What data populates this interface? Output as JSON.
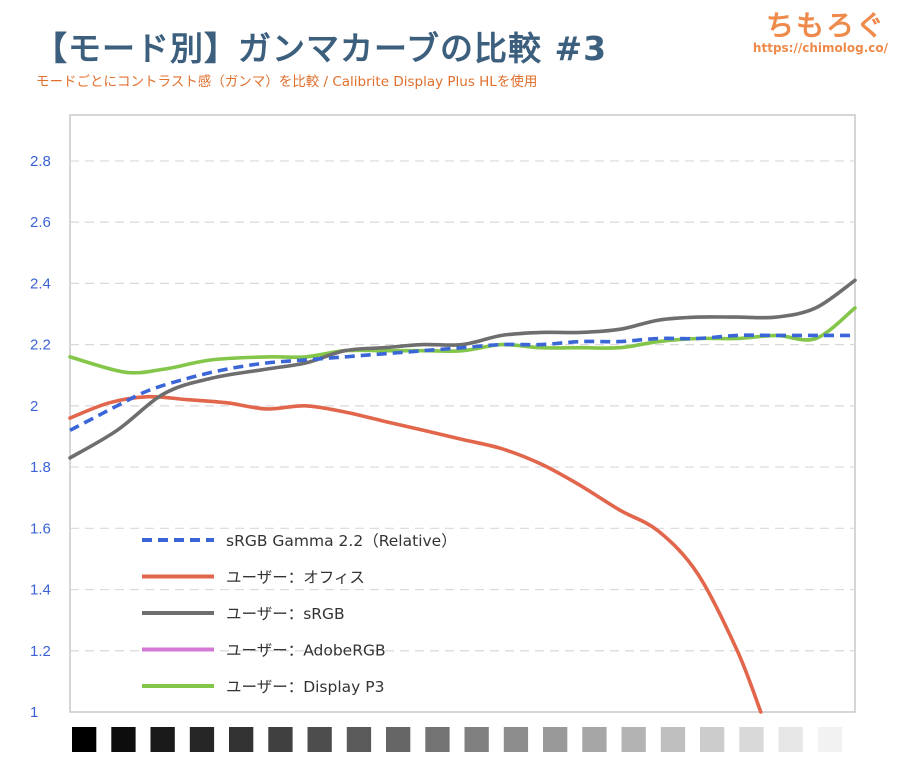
{
  "header": {
    "title": "【モード別】ガンマカーブの比較 #3",
    "subtitle": "モードごとにコントラスト感（ガンマ）を比較 / Calibrite Display Plus HLを使用",
    "brand_logo": "ちもろぐ",
    "brand_url": "https://chimolog.co/"
  },
  "colors": {
    "title": "#3c5f7e",
    "subtitle": "#e0702e",
    "brand": "#ee8a4a",
    "tick_labels": "#3b63d6",
    "grid": "#d9d9d9",
    "frame": "#c8c8c8"
  },
  "chart_data": {
    "type": "line",
    "title": "",
    "xlabel": "",
    "ylabel": "",
    "ylim": [
      1,
      2.95
    ],
    "yticks": [
      "1",
      "1.2",
      "1.4",
      "1.6",
      "1.8",
      "2",
      "2.2",
      "2.4",
      "2.6",
      "2.8"
    ],
    "grid": true,
    "legend_position": "bottom-left",
    "x_range": [
      0,
      100
    ],
    "x_axis_note": "グレースケールの明るさ（黒→白のパッチ）",
    "grayscale_patches": [
      "#000000",
      "#0d0d0d",
      "#1a1a1a",
      "#262626",
      "#333333",
      "#404040",
      "#4d4d4d",
      "#5a5a5a",
      "#666666",
      "#737373",
      "#808080",
      "#8c8c8c",
      "#999999",
      "#a6a6a6",
      "#b3b3b3",
      "#bfbfbf",
      "#cccccc",
      "#d9d9d9",
      "#e6e6e6",
      "#f2f2f2"
    ],
    "series": [
      {
        "name": "sRGB Gamma 2.2（Relative）",
        "color": "#3a66d8",
        "dashed": true,
        "points": [
          [
            0,
            1.92
          ],
          [
            3,
            1.96
          ],
          [
            6,
            2.0
          ],
          [
            10,
            2.05
          ],
          [
            15,
            2.09
          ],
          [
            20,
            2.12
          ],
          [
            25,
            2.14
          ],
          [
            30,
            2.15
          ],
          [
            35,
            2.16
          ],
          [
            40,
            2.17
          ],
          [
            45,
            2.18
          ],
          [
            50,
            2.19
          ],
          [
            55,
            2.2
          ],
          [
            60,
            2.2
          ],
          [
            65,
            2.21
          ],
          [
            70,
            2.21
          ],
          [
            75,
            2.22
          ],
          [
            80,
            2.22
          ],
          [
            85,
            2.23
          ],
          [
            90,
            2.23
          ],
          [
            95,
            2.23
          ],
          [
            100,
            2.23
          ]
        ]
      },
      {
        "name": "ユーザー：オフィス",
        "color": "#e1664b",
        "dashed": false,
        "points": [
          [
            0,
            1.96
          ],
          [
            5,
            2.01
          ],
          [
            10,
            2.03
          ],
          [
            15,
            2.02
          ],
          [
            20,
            2.01
          ],
          [
            25,
            1.99
          ],
          [
            30,
            2.0
          ],
          [
            35,
            1.98
          ],
          [
            40,
            1.95
          ],
          [
            45,
            1.92
          ],
          [
            50,
            1.89
          ],
          [
            55,
            1.86
          ],
          [
            60,
            1.81
          ],
          [
            65,
            1.74
          ],
          [
            70,
            1.66
          ],
          [
            75,
            1.59
          ],
          [
            80,
            1.45
          ],
          [
            85,
            1.2
          ],
          [
            88,
            1.0
          ]
        ]
      },
      {
        "name": "ユーザー：sRGB",
        "color": "#6e6e6e",
        "dashed": false,
        "points": [
          [
            0,
            1.83
          ],
          [
            6,
            1.92
          ],
          [
            12,
            2.04
          ],
          [
            18,
            2.09
          ],
          [
            25,
            2.12
          ],
          [
            30,
            2.14
          ],
          [
            35,
            2.18
          ],
          [
            40,
            2.19
          ],
          [
            45,
            2.2
          ],
          [
            50,
            2.2
          ],
          [
            55,
            2.23
          ],
          [
            60,
            2.24
          ],
          [
            65,
            2.24
          ],
          [
            70,
            2.25
          ],
          [
            75,
            2.28
          ],
          [
            80,
            2.29
          ],
          [
            85,
            2.29
          ],
          [
            90,
            2.29
          ],
          [
            95,
            2.32
          ],
          [
            100,
            2.41
          ]
        ]
      },
      {
        "name": "ユーザー：AdobeRGB",
        "color": "#d678d6",
        "dashed": false,
        "points": []
      },
      {
        "name": "ユーザー：Display P3",
        "color": "#84c64a",
        "dashed": false,
        "points": [
          [
            0,
            2.16
          ],
          [
            7,
            2.11
          ],
          [
            12,
            2.12
          ],
          [
            18,
            2.15
          ],
          [
            25,
            2.16
          ],
          [
            30,
            2.16
          ],
          [
            35,
            2.18
          ],
          [
            40,
            2.18
          ],
          [
            45,
            2.18
          ],
          [
            50,
            2.18
          ],
          [
            55,
            2.2
          ],
          [
            60,
            2.19
          ],
          [
            65,
            2.19
          ],
          [
            70,
            2.19
          ],
          [
            75,
            2.21
          ],
          [
            80,
            2.22
          ],
          [
            85,
            2.22
          ],
          [
            90,
            2.23
          ],
          [
            95,
            2.22
          ],
          [
            100,
            2.32
          ]
        ]
      }
    ]
  }
}
